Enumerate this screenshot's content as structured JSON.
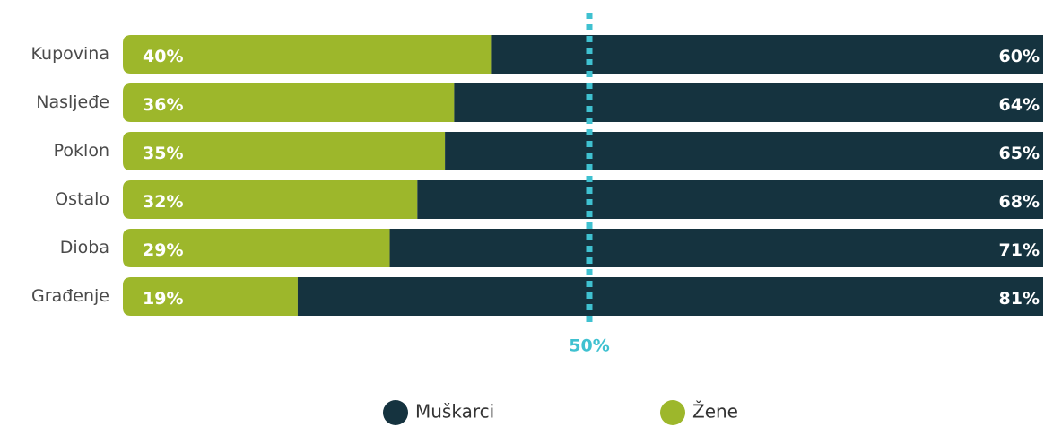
{
  "chart_data": {
    "type": "stacked-bar-horizontal",
    "categories": [
      "Kupovina",
      "Nasljeđe",
      "Poklon",
      "Ostalo",
      "Dioba",
      "Građenje"
    ],
    "series": [
      {
        "name": "Žene",
        "color": "#9db72b",
        "values": [
          40,
          36,
          35,
          32,
          29,
          19
        ],
        "value_labels": [
          "40%",
          "36%",
          "35%",
          "32%",
          "29%",
          "19%"
        ]
      },
      {
        "name": "Muškarci",
        "color": "#15333f",
        "values": [
          60,
          64,
          65,
          68,
          71,
          81
        ],
        "value_labels": [
          "60%",
          "64%",
          "65%",
          "68%",
          "71%",
          "81%"
        ]
      }
    ],
    "xlim": [
      0,
      100
    ],
    "reference_line": {
      "value": 50,
      "label": "50%",
      "color": "#3fc1d0"
    }
  }
}
